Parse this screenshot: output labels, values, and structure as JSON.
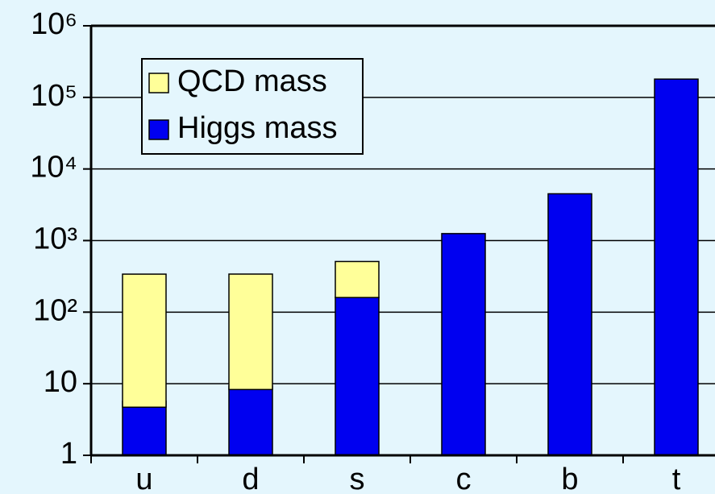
{
  "chart_data": {
    "type": "bar",
    "stacked": true,
    "log_scale": true,
    "grid": true,
    "legend": "upper-left",
    "categories": [
      "u",
      "d",
      "s",
      "c",
      "b",
      "t"
    ],
    "series": [
      {
        "name": "Higgs mass",
        "color": "#0000f0",
        "values": [
          4.7,
          8.3,
          160,
          1250,
          4500,
          180000
        ]
      },
      {
        "name": "QCD mass",
        "color": "#ffff99",
        "values": [
          335,
          332,
          350,
          null,
          null,
          null
        ]
      }
    ],
    "ylim": [
      1,
      1000000
    ],
    "yticks": [
      1,
      10,
      {
        "value": 100,
        "label": "10²"
      },
      {
        "value": 1000,
        "label": "10³"
      },
      {
        "value": 10000,
        "label": "10⁴"
      },
      {
        "value": 100000,
        "label": "10⁵"
      },
      {
        "value": 1000000,
        "label": "10⁶"
      }
    ]
  }
}
